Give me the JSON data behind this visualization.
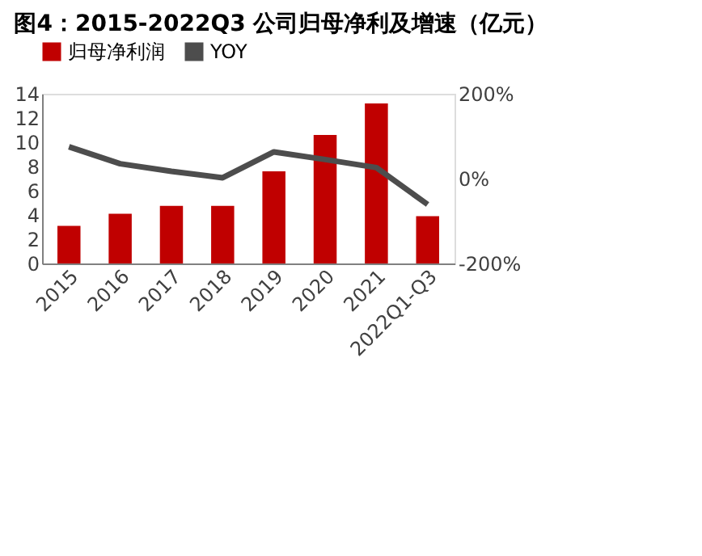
{
  "chart_data": {
    "type": "bar",
    "title": "图4：2015-2022Q3 公司归母净利及增速（亿元）",
    "categories": [
      "2015",
      "2016",
      "2017",
      "2018",
      "2019",
      "2020",
      "2021",
      "2022Q1-Q3"
    ],
    "series": [
      {
        "name": "归母净利润",
        "color": "#c00000",
        "values": [
          3.1,
          4.1,
          4.75,
          4.75,
          7.6,
          10.6,
          13.2,
          3.9
        ]
      },
      {
        "name": "YOY",
        "type": "line",
        "axis": "y2",
        "color": "#4d4d4d",
        "values": [
          75,
          35,
          17,
          2,
          63,
          45,
          26,
          -61
        ]
      }
    ],
    "ylim": [
      0,
      14
    ],
    "yticks": [
      0,
      2,
      4,
      6,
      8,
      10,
      12,
      14
    ],
    "y2lim": [
      -200,
      200
    ],
    "y2ticks": [
      {
        "value": -200,
        "label": "-200%"
      },
      {
        "value": 0,
        "label": "0%"
      },
      {
        "value": 200,
        "label": "200%"
      }
    ],
    "legend": "top",
    "grid": false,
    "marker": "none",
    "line_style": "solid"
  }
}
